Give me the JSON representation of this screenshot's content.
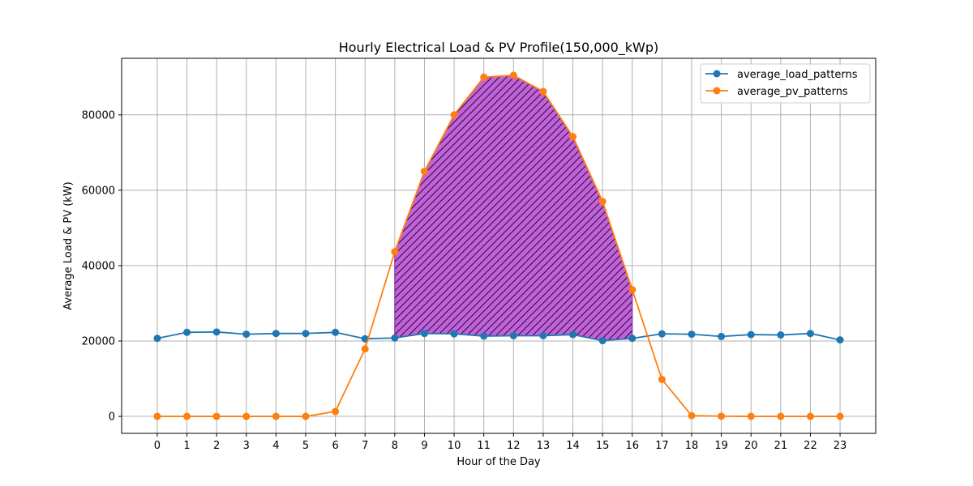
{
  "chart_data": {
    "type": "line",
    "title": "Hourly Electrical Load  & PV Profile(150,000_kWp)",
    "xlabel": "Hour of the Day",
    "ylabel": "Average Load & PV (kW)",
    "x": [
      0,
      1,
      2,
      3,
      4,
      5,
      6,
      7,
      8,
      9,
      10,
      11,
      12,
      13,
      14,
      15,
      16,
      17,
      18,
      19,
      20,
      21,
      22,
      23
    ],
    "xlim": [
      -1.2,
      24.2
    ],
    "ylim": [
      -4500,
      95000
    ],
    "yticks": [
      0,
      20000,
      40000,
      60000,
      80000
    ],
    "grid": true,
    "legend_position": "upper right",
    "series": [
      {
        "name": "average_load_patterns",
        "color": "#1f77b4",
        "values": [
          20700,
          22300,
          22400,
          21800,
          22000,
          22000,
          22300,
          20600,
          20800,
          22000,
          21900,
          21300,
          21400,
          21400,
          21700,
          20100,
          20700,
          21900,
          21800,
          21200,
          21700,
          21600,
          22000,
          20300
        ]
      },
      {
        "name": "average_pv_patterns",
        "color": "#ff7f0e",
        "values": [
          0,
          0,
          0,
          0,
          0,
          0,
          1300,
          17900,
          43700,
          65000,
          80000,
          90000,
          90500,
          86200,
          74200,
          57000,
          33600,
          9800,
          200,
          50,
          0,
          0,
          0,
          0
        ]
      }
    ],
    "fill": {
      "between": [
        "average_load_patterns",
        "average_pv_patterns"
      ],
      "x_range": [
        8,
        16
      ],
      "color": "#c45fe0",
      "edge_color": "#7a1fa0",
      "hatch": "diagonal"
    }
  }
}
